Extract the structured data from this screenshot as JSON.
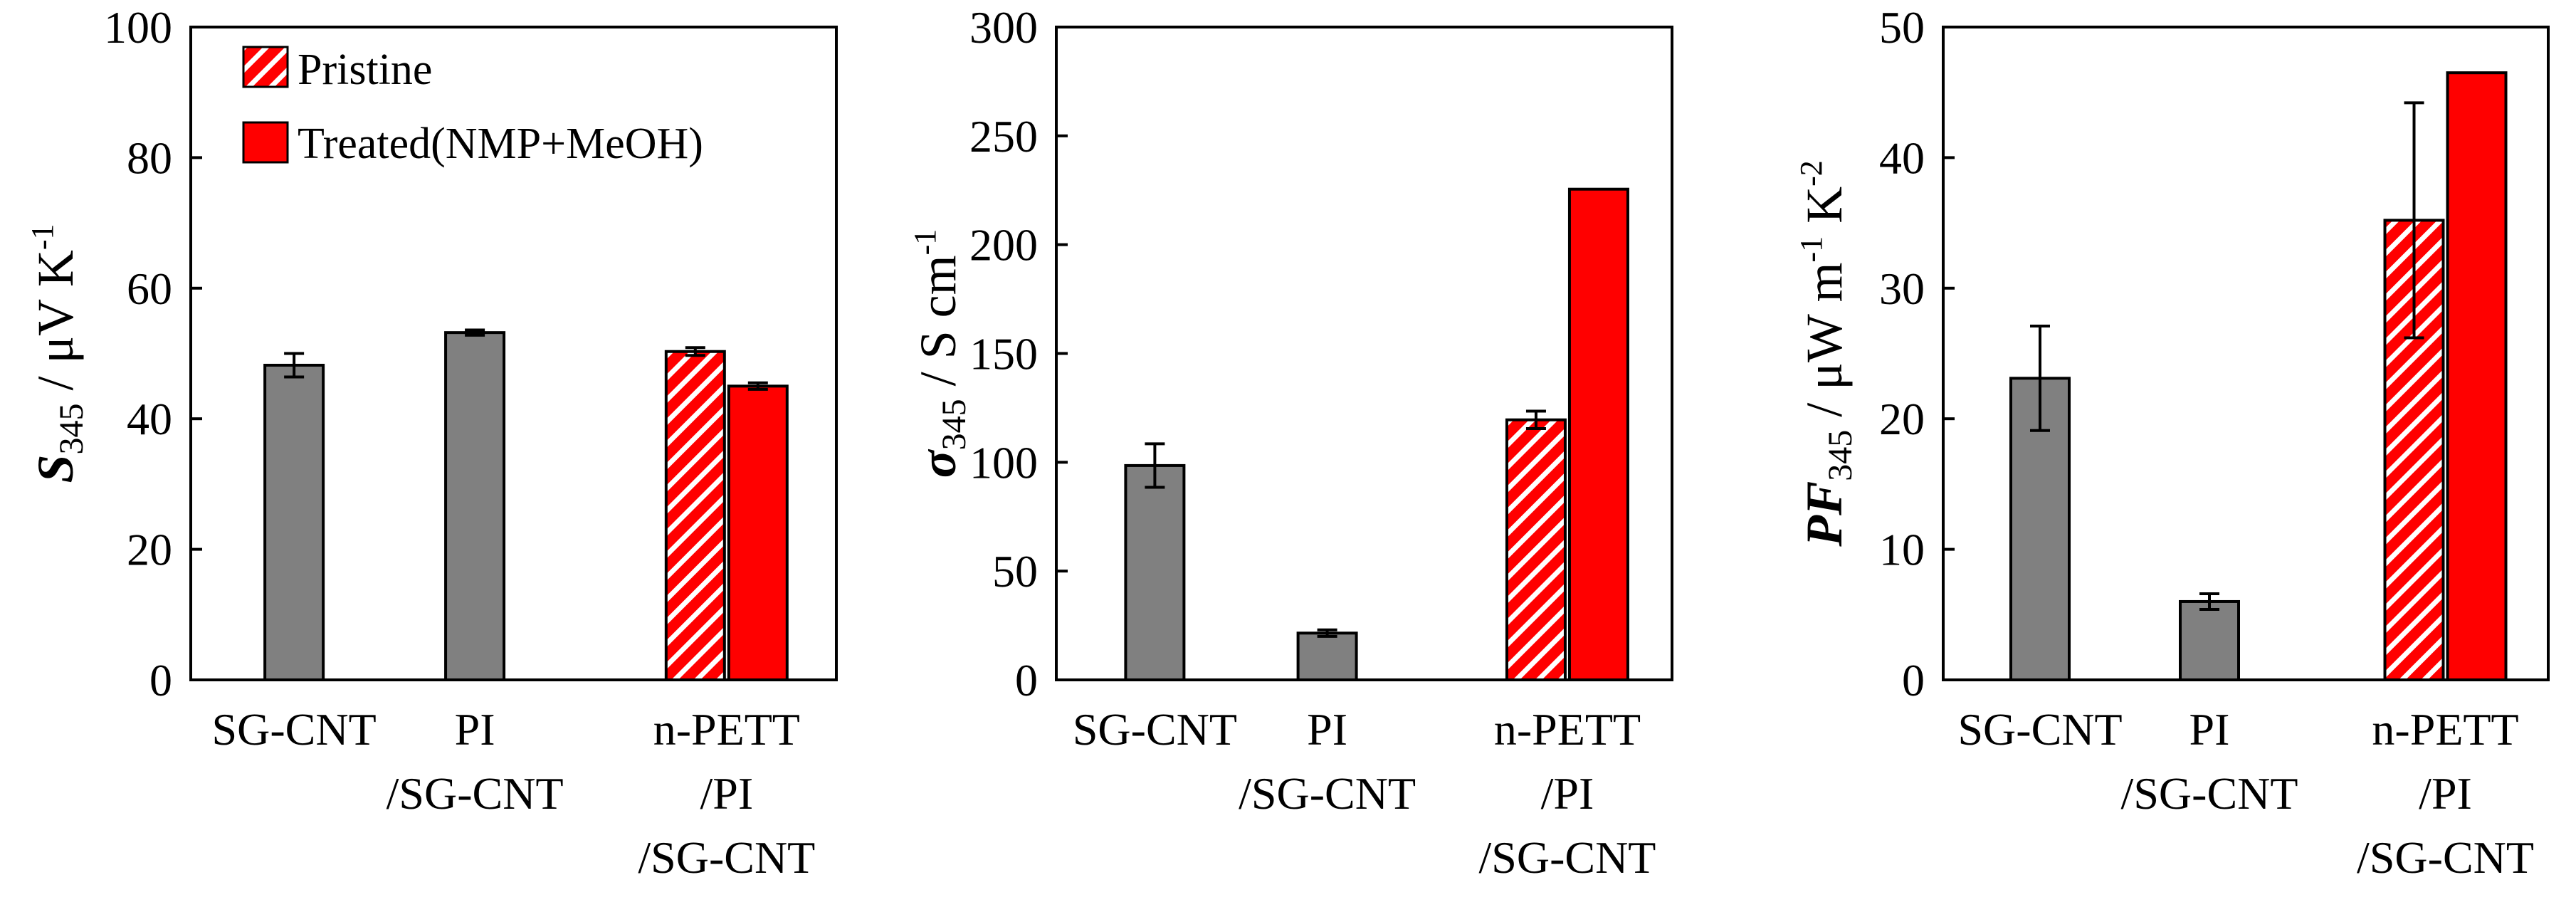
{
  "colors": {
    "pristine": "#ff0000",
    "treated": "#ff0000",
    "baseline": "#808080",
    "axis": "#000000"
  },
  "legend": {
    "pristine_label": "Pristine",
    "treated_label": "Treated(NMP+MeOH)"
  },
  "chart_data": [
    {
      "type": "bar",
      "ylabel": {
        "symbol": "S",
        "subscript": "345",
        "unit_prefix": " / μV K",
        "superscript": "-1",
        "unit_suffix": ""
      },
      "ylim": [
        0,
        100
      ],
      "yticks": [
        "0",
        "20",
        "40",
        "60",
        "80",
        "100"
      ],
      "categories": [
        {
          "lines": [
            "SG-CNT"
          ]
        },
        {
          "lines": [
            "PI",
            "/SG-CNT"
          ]
        },
        {
          "lines": [
            "n-PETT",
            "/PI",
            "/SG-CNT"
          ]
        }
      ],
      "bars": [
        {
          "category": 0,
          "style": "baseline",
          "value": 48.2,
          "error": 1.8
        },
        {
          "category": 1,
          "style": "baseline",
          "value": 53.2,
          "error": 0.4
        },
        {
          "category": 2,
          "style": "pristine",
          "value": 50.3,
          "error": 0.6
        },
        {
          "category": 2,
          "style": "treated",
          "value": 45.0,
          "error": 0.5
        }
      ],
      "show_legend": true
    },
    {
      "type": "bar",
      "ylabel": {
        "symbol": "σ",
        "subscript": "345",
        "unit_prefix": " / S cm",
        "superscript": "-1",
        "unit_suffix": ""
      },
      "ylim": [
        0,
        300
      ],
      "yticks": [
        "0",
        "50",
        "100",
        "150",
        "200",
        "250",
        "300"
      ],
      "categories": [
        {
          "lines": [
            "SG-CNT"
          ]
        },
        {
          "lines": [
            "PI",
            "/SG-CNT"
          ]
        },
        {
          "lines": [
            "n-PETT",
            "/PI",
            "/SG-CNT"
          ]
        }
      ],
      "bars": [
        {
          "category": 0,
          "style": "baseline",
          "value": 98.5,
          "error": 10
        },
        {
          "category": 1,
          "style": "baseline",
          "value": 21.5,
          "error": 1.5
        },
        {
          "category": 2,
          "style": "pristine",
          "value": 119.5,
          "error": 4
        },
        {
          "category": 2,
          "style": "treated",
          "value": 225.5,
          "error": 0
        }
      ],
      "show_legend": false
    },
    {
      "type": "bar",
      "ylabel": {
        "symbol": "PF",
        "subscript": "345",
        "unit_prefix": " / μW m",
        "superscript": "-1",
        "unit_mid": " K",
        "superscript2": "-2"
      },
      "ylim": [
        0,
        50
      ],
      "yticks": [
        "0",
        "10",
        "20",
        "30",
        "40",
        "50"
      ],
      "categories": [
        {
          "lines": [
            "SG-CNT"
          ]
        },
        {
          "lines": [
            "PI",
            "/SG-CNT"
          ]
        },
        {
          "lines": [
            "n-PETT",
            "/PI",
            "/SG-CNT"
          ]
        }
      ],
      "bars": [
        {
          "category": 0,
          "style": "baseline",
          "value": 23.1,
          "error": 4
        },
        {
          "category": 1,
          "style": "baseline",
          "value": 6.0,
          "error": 0.6
        },
        {
          "category": 2,
          "style": "pristine",
          "value": 35.2,
          "error": 9
        },
        {
          "category": 2,
          "style": "treated",
          "value": 46.5,
          "error": 0
        }
      ],
      "show_legend": false
    }
  ]
}
